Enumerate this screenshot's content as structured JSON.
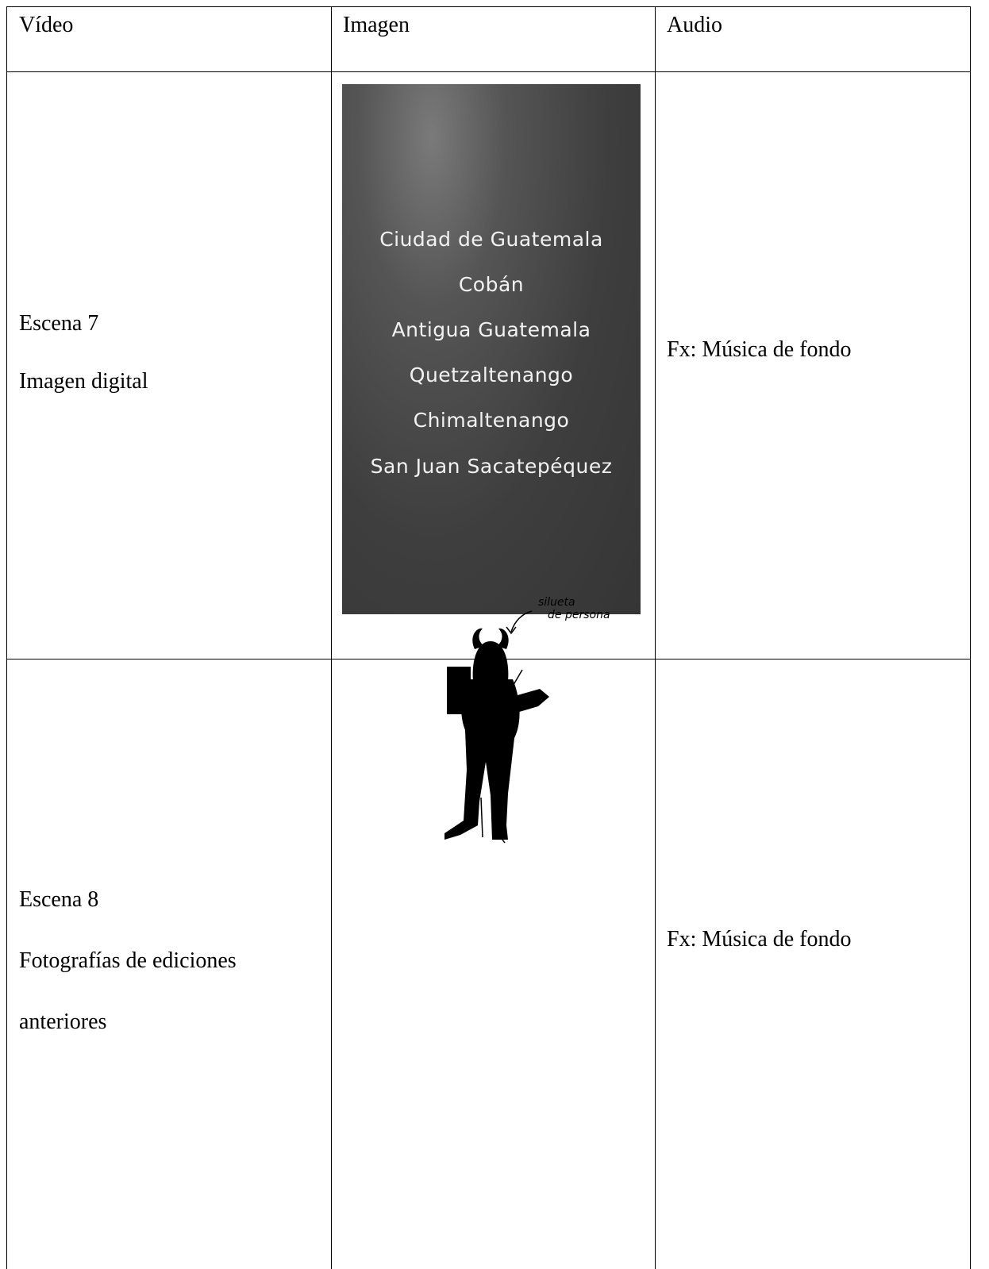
{
  "table": {
    "header": [
      "Vídeo",
      "Imagen",
      "Audio"
    ],
    "rows": [
      {
        "video": [
          "Escena 7",
          "Imagen digital"
        ],
        "image_text": [
          "Ciudad de Guatemala",
          "Cobán",
          "Antigua Guatemala",
          "Quetzaltenango",
          "Chimaltenango",
          "San Juan Sacatepéquez"
        ],
        "audio": "Fx: Música de fondo"
      },
      {
        "video": [
          "Escena 8",
          "Fotografías de ediciones anteriores"
        ],
        "image_annotation": [
          "silueta",
          "de persona"
        ],
        "audio": "Fx: Música de fondo"
      }
    ]
  }
}
